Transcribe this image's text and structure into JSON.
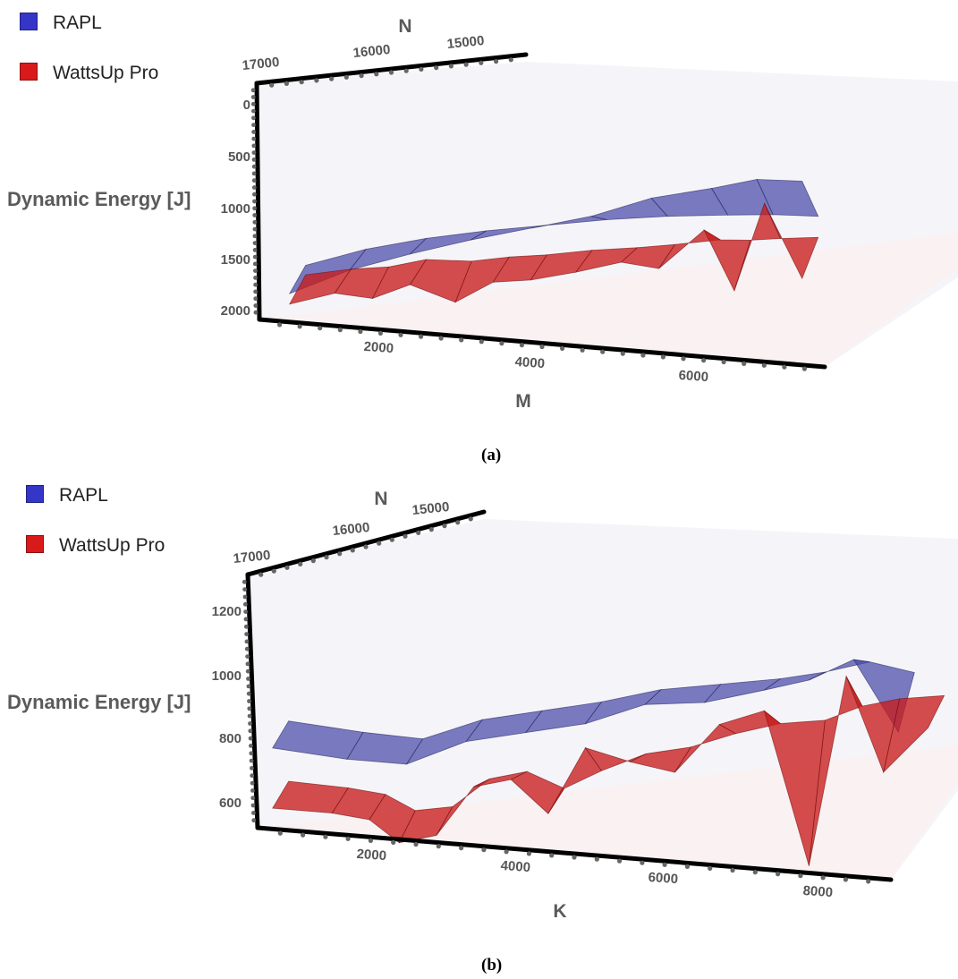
{
  "chart_data": [
    {
      "type": "surface3d",
      "panel_label": "(a)",
      "legend": [
        {
          "name": "RAPL",
          "color": "#3d3db0"
        },
        {
          "name": "WattsUp Pro",
          "color": "#d01818"
        }
      ],
      "zlabel": "Dynamic Energy [J]",
      "xlabel": "M",
      "ylabel": "N",
      "x_ticks": [
        "2000",
        "4000",
        "6000"
      ],
      "y_ticks": [
        "17000",
        "16000",
        "15000"
      ],
      "z_ticks": [
        "0",
        "500",
        "1000",
        "1500",
        "2000"
      ],
      "zlim": [
        0,
        2200
      ],
      "xlim": [
        0,
        7500
      ],
      "series": [
        {
          "name": "RAPL",
          "x": [
            400,
            1200,
            2000,
            2800,
            3600,
            4400,
            5200,
            6000,
            6600,
            7200
          ],
          "front": [
            150,
            420,
            620,
            800,
            960,
            1120,
            1340,
            1480,
            1600,
            1620
          ],
          "back": [
            130,
            330,
            480,
            600,
            700,
            800,
            880,
            940,
            980,
            1000
          ]
        },
        {
          "name": "WattsUp Pro",
          "x": [
            400,
            1000,
            1500,
            2000,
            2600,
            3100,
            3600,
            4200,
            4800,
            5300,
            5900,
            6300,
            6700,
            7200
          ],
          "front": [
            50,
            190,
            170,
            330,
            200,
            420,
            470,
            580,
            710,
            680,
            1080,
            530,
            1380,
            700
          ],
          "back": [
            40,
            130,
            180,
            280,
            300,
            370,
            420,
            500,
            560,
            620,
            700,
            720,
            760,
            800
          ]
        }
      ]
    },
    {
      "type": "surface3d",
      "panel_label": "(b)",
      "legend": [
        {
          "name": "RAPL",
          "color": "#3d3db0"
        },
        {
          "name": "WattsUp Pro",
          "color": "#d01818"
        }
      ],
      "zlabel": "Dynamic Energy [J]",
      "xlabel": "K",
      "ylabel": "N",
      "x_ticks": [
        "2000",
        "4000",
        "6000",
        "8000"
      ],
      "y_ticks": [
        "17000",
        "16000",
        "15000"
      ],
      "z_ticks": [
        "600",
        "800",
        "1000",
        "1200"
      ],
      "zlim": [
        550,
        1330
      ],
      "xlim": [
        0,
        8500
      ],
      "series": [
        {
          "name": "RAPL",
          "x": [
            200,
            1200,
            2000,
            2800,
            3600,
            4400,
            5200,
            6000,
            6800,
            7400,
            8000,
            8600
          ],
          "front": [
            775,
            760,
            760,
            840,
            880,
            920,
            990,
            1010,
            1060,
            1100,
            1170,
            970
          ],
          "back": [
            770,
            755,
            750,
            820,
            860,
            900,
            950,
            980,
            1010,
            1040,
            1080,
            1060
          ]
        },
        {
          "name": "WattsUp Pro",
          "x": [
            200,
            1000,
            1500,
            1900,
            2400,
            2900,
            3400,
            3900,
            4400,
            5000,
            5600,
            6200,
            6800,
            7400,
            7900,
            8400,
            9000
          ],
          "front": [
            600,
            600,
            590,
            530,
            560,
            710,
            740,
            650,
            850,
            820,
            800,
            950,
            1000,
            560,
            1120,
            850,
            990
          ],
          "back": [
            595,
            590,
            580,
            540,
            560,
            650,
            680,
            640,
            700,
            760,
            790,
            840,
            880,
            900,
            950,
            980,
            1000
          ]
        }
      ]
    }
  ]
}
